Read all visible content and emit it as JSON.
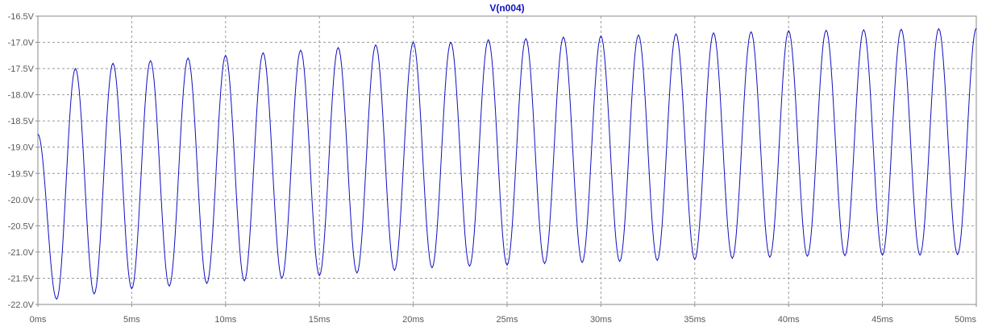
{
  "chart_data": {
    "type": "line",
    "title": "V(n004)",
    "xlabel": "",
    "ylabel": "",
    "xlim": [
      0,
      50
    ],
    "ylim": [
      -22.0,
      -16.5
    ],
    "grid": true,
    "x_unit": "ms",
    "y_unit": "V",
    "x_ticks": [
      "0ms",
      "5ms",
      "10ms",
      "15ms",
      "20ms",
      "25ms",
      "30ms",
      "35ms",
      "40ms",
      "45ms",
      "50ms"
    ],
    "y_ticks": [
      "-16.5V",
      "-17.0V",
      "-17.5V",
      "-18.0V",
      "-18.5V",
      "-19.0V",
      "-19.5V",
      "-20.0V",
      "-20.5V",
      "-21.0V",
      "-21.5V",
      "-22.0V"
    ],
    "series": [
      {
        "name": "V(n004)",
        "color": "#1010c0",
        "x": [
          0.0,
          1.0,
          2.0,
          3.0,
          4.0,
          5.0,
          6.0,
          7.0,
          8.0,
          9.0,
          10.0,
          11.0,
          12.0,
          13.0,
          14.0,
          15.0,
          16.0,
          17.0,
          18.0,
          19.0,
          20.0,
          21.0,
          22.0,
          23.0,
          24.0,
          25.0,
          26.0,
          27.0,
          28.0,
          29.0,
          30.0,
          31.0,
          32.0,
          33.0,
          34.0,
          35.0,
          36.0,
          37.0,
          38.0,
          39.0,
          40.0,
          41.0,
          42.0,
          43.0,
          44.0,
          45.0,
          46.0,
          47.0,
          48.0,
          49.0,
          50.0
        ],
        "y": [
          -18.75,
          -21.9,
          -17.5,
          -21.8,
          -17.4,
          -21.7,
          -17.35,
          -21.65,
          -17.3,
          -21.6,
          -17.25,
          -21.55,
          -17.2,
          -21.5,
          -17.15,
          -21.45,
          -17.1,
          -21.4,
          -17.05,
          -21.35,
          -17.0,
          -21.3,
          -17.0,
          -21.27,
          -16.95,
          -21.25,
          -16.93,
          -21.22,
          -16.9,
          -21.2,
          -16.88,
          -21.18,
          -16.86,
          -21.16,
          -16.84,
          -21.14,
          -16.82,
          -21.12,
          -16.8,
          -21.1,
          -16.78,
          -21.08,
          -16.77,
          -21.07,
          -16.76,
          -21.06,
          -16.75,
          -21.06,
          -16.74,
          -21.05,
          -16.73
        ]
      }
    ]
  }
}
